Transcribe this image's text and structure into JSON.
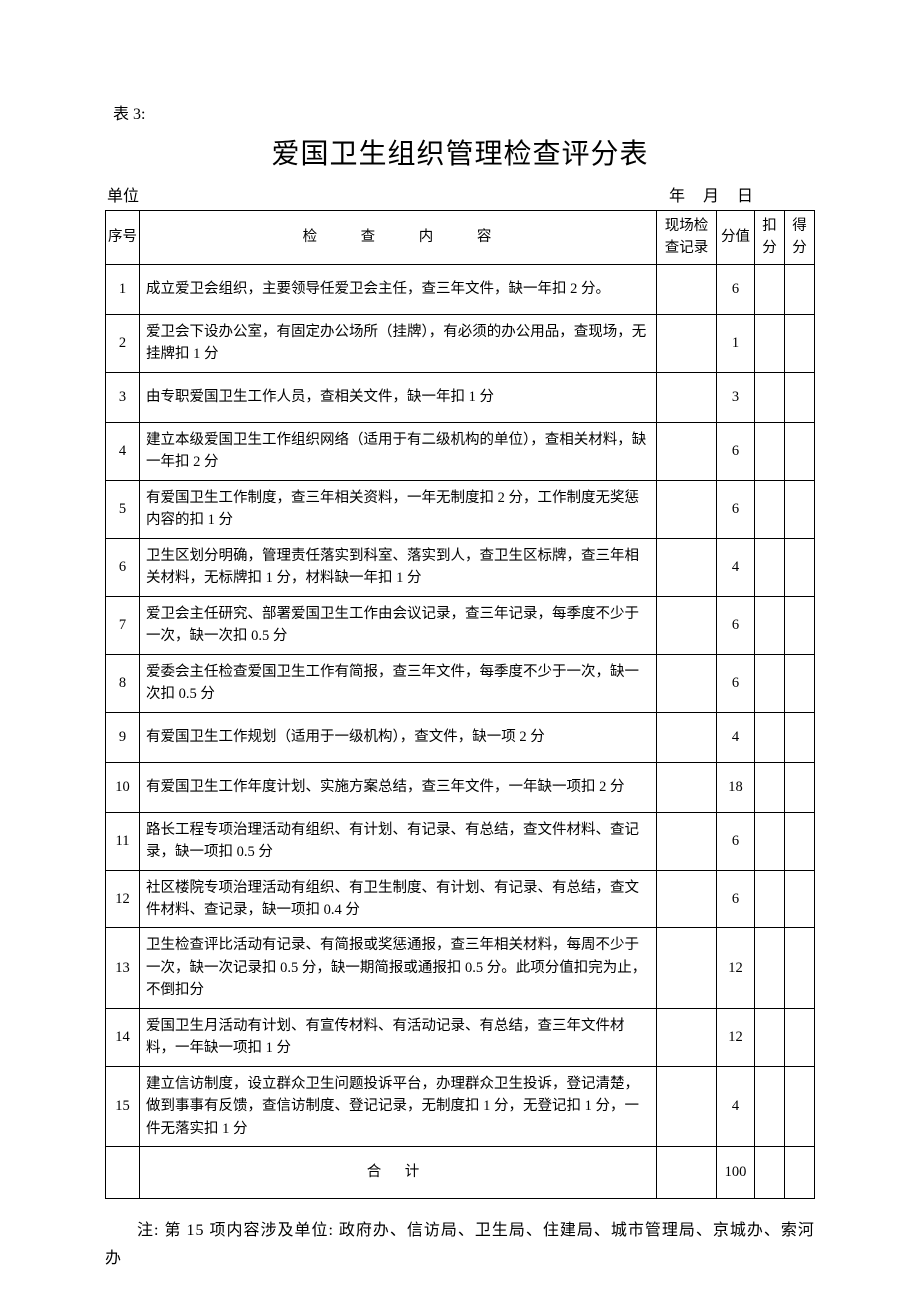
{
  "label": "表 3:",
  "title": "爱国卫生组织管理检查评分表",
  "meta": {
    "unit_label": "单位",
    "year_label": "年",
    "month_label": "月",
    "day_label": "日"
  },
  "headers": {
    "num": "序号",
    "content": "检 查 内 容",
    "record": "现场检查记录",
    "value": "分值",
    "deduct": "扣分",
    "score": "得分"
  },
  "rows": [
    {
      "num": "1",
      "content": "成立爱卫会组织，主要领导任爱卫会主任，查三年文件，缺一年扣 2 分。",
      "value": "6",
      "lines": 2
    },
    {
      "num": "2",
      "content": "爱卫会下设办公室，有固定办公场所（挂牌），有必须的办公用品，查现场，无挂牌扣 1 分",
      "value": "1",
      "lines": 2
    },
    {
      "num": "3",
      "content": "由专职爱国卫生工作人员，查相关文件，缺一年扣 1 分",
      "value": "3",
      "lines": 1
    },
    {
      "num": "4",
      "content": "建立本级爱国卫生工作组织网络（适用于有二级机构的单位），查相关材料，缺一年扣 2 分",
      "value": "6",
      "lines": 2
    },
    {
      "num": "5",
      "content": "有爱国卫生工作制度，查三年相关资料，一年无制度扣 2 分，工作制度无奖惩内容的扣 1 分",
      "value": "6",
      "lines": 2
    },
    {
      "num": "6",
      "content": "卫生区划分明确，管理责任落实到科室、落实到人，查卫生区标牌，查三年相关材料，无标牌扣 1 分，材料缺一年扣 1 分",
      "value": "4",
      "lines": 2
    },
    {
      "num": "7",
      "content": "爱卫会主任研究、部署爱国卫生工作由会议记录，查三年记录，每季度不少于一次，缺一次扣 0.5 分",
      "value": "6",
      "lines": 2
    },
    {
      "num": "8",
      "content": "爱委会主任检查爱国卫生工作有简报，查三年文件，每季度不少于一次，缺一次扣 0.5 分",
      "value": "6",
      "lines": 2
    },
    {
      "num": "9",
      "content": "有爱国卫生工作规划（适用于一级机构），查文件，缺一项 2 分",
      "value": "4",
      "lines": 1
    },
    {
      "num": "10",
      "content": "有爱国卫生工作年度计划、实施方案总结，查三年文件，一年缺一项扣 2 分",
      "value": "18",
      "lines": 2
    },
    {
      "num": "11",
      "content": "路长工程专项治理活动有组织、有计划、有记录、有总结，查文件材料、查记录，缺一项扣 0.5 分",
      "value": "6",
      "lines": 2
    },
    {
      "num": "12",
      "content": "社区楼院专项治理活动有组织、有卫生制度、有计划、有记录、有总结，查文件材料、查记录，缺一项扣 0.4 分",
      "value": "6",
      "lines": 2
    },
    {
      "num": "13",
      "content": "卫生检查评比活动有记录、有简报或奖惩通报，查三年相关材料，每周不少于一次，缺一次记录扣 0.5 分，缺一期简报或通报扣 0.5 分。此项分值扣完为止，不倒扣分",
      "value": "12",
      "lines": 3
    },
    {
      "num": "14",
      "content": "爱国卫生月活动有计划、有宣传材料、有活动记录、有总结，查三年文件材料，一年缺一项扣 1 分",
      "value": "12",
      "lines": 2
    },
    {
      "num": "15",
      "content": "建立信访制度，设立群众卫生问题投诉平台，办理群众卫生投诉，登记清楚，做到事事有反馈，查信访制度、登记记录，无制度扣 1 分，无登记扣 1 分，一件无落实扣 1 分",
      "value": "4",
      "lines": 3
    }
  ],
  "total": {
    "label": "合 计",
    "value": "100"
  },
  "footnote": "注: 第 15 项内容涉及单位: 政府办、信访局、卫生局、住建局、城市管理局、京城办、索河办"
}
